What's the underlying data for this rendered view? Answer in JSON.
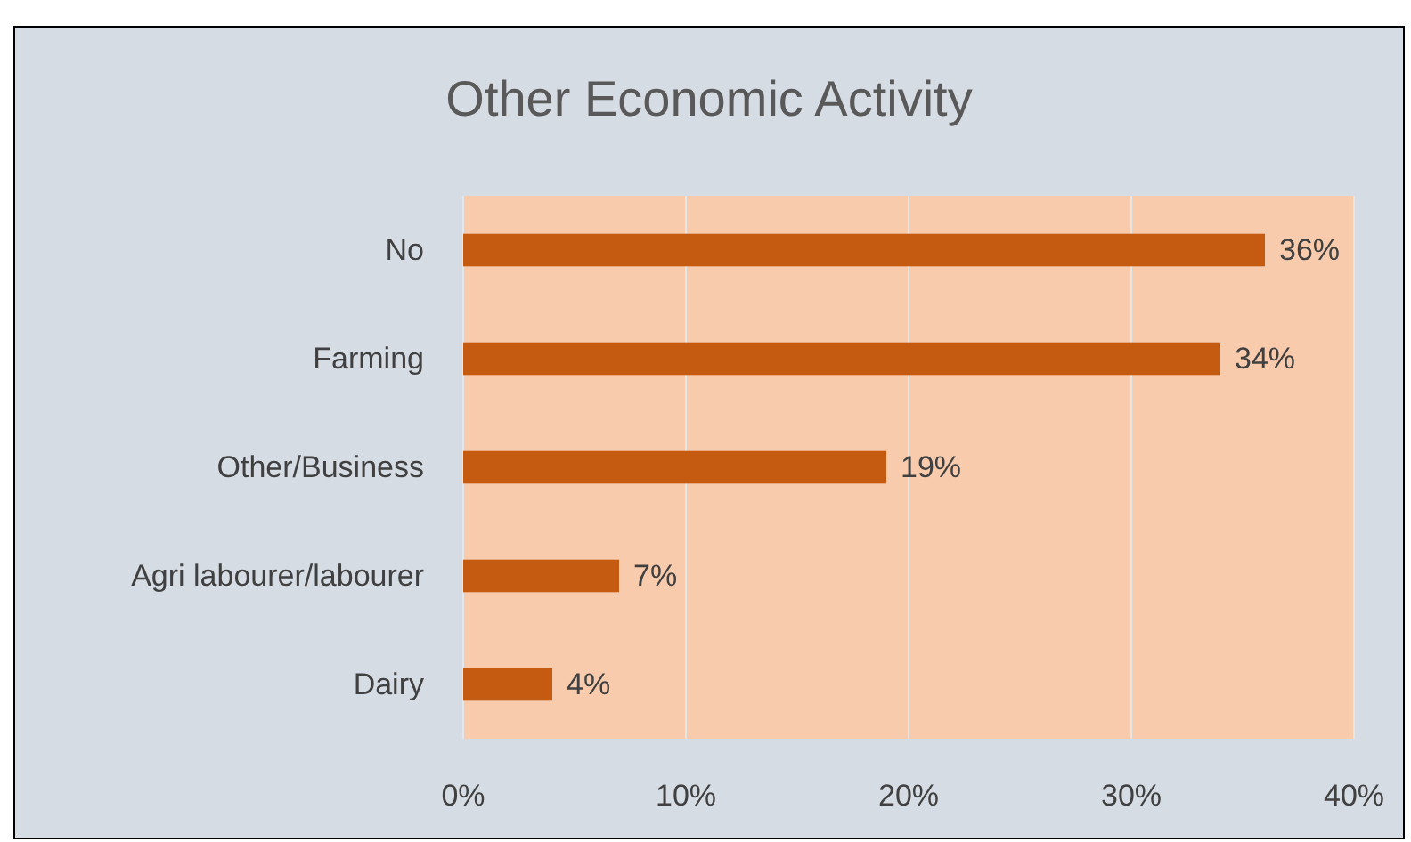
{
  "chart_data": {
    "type": "bar",
    "orientation": "horizontal",
    "title": "Other Economic Activity",
    "categories": [
      "No",
      "Farming",
      "Other/Business",
      "Agri labourer/labourer",
      "Dairy"
    ],
    "values": [
      36,
      34,
      19,
      7,
      4
    ],
    "value_labels": [
      "36%",
      "34%",
      "19%",
      "7%",
      "4%"
    ],
    "color": "#c55a11",
    "xlim": [
      0,
      40
    ],
    "xticks": [
      {
        "value": 0,
        "label": "0%"
      },
      {
        "value": 10,
        "label": "10%"
      },
      {
        "value": 20,
        "label": "20%"
      },
      {
        "value": 30,
        "label": "30%"
      },
      {
        "value": 40,
        "label": "40%"
      }
    ],
    "grid": "x"
  }
}
